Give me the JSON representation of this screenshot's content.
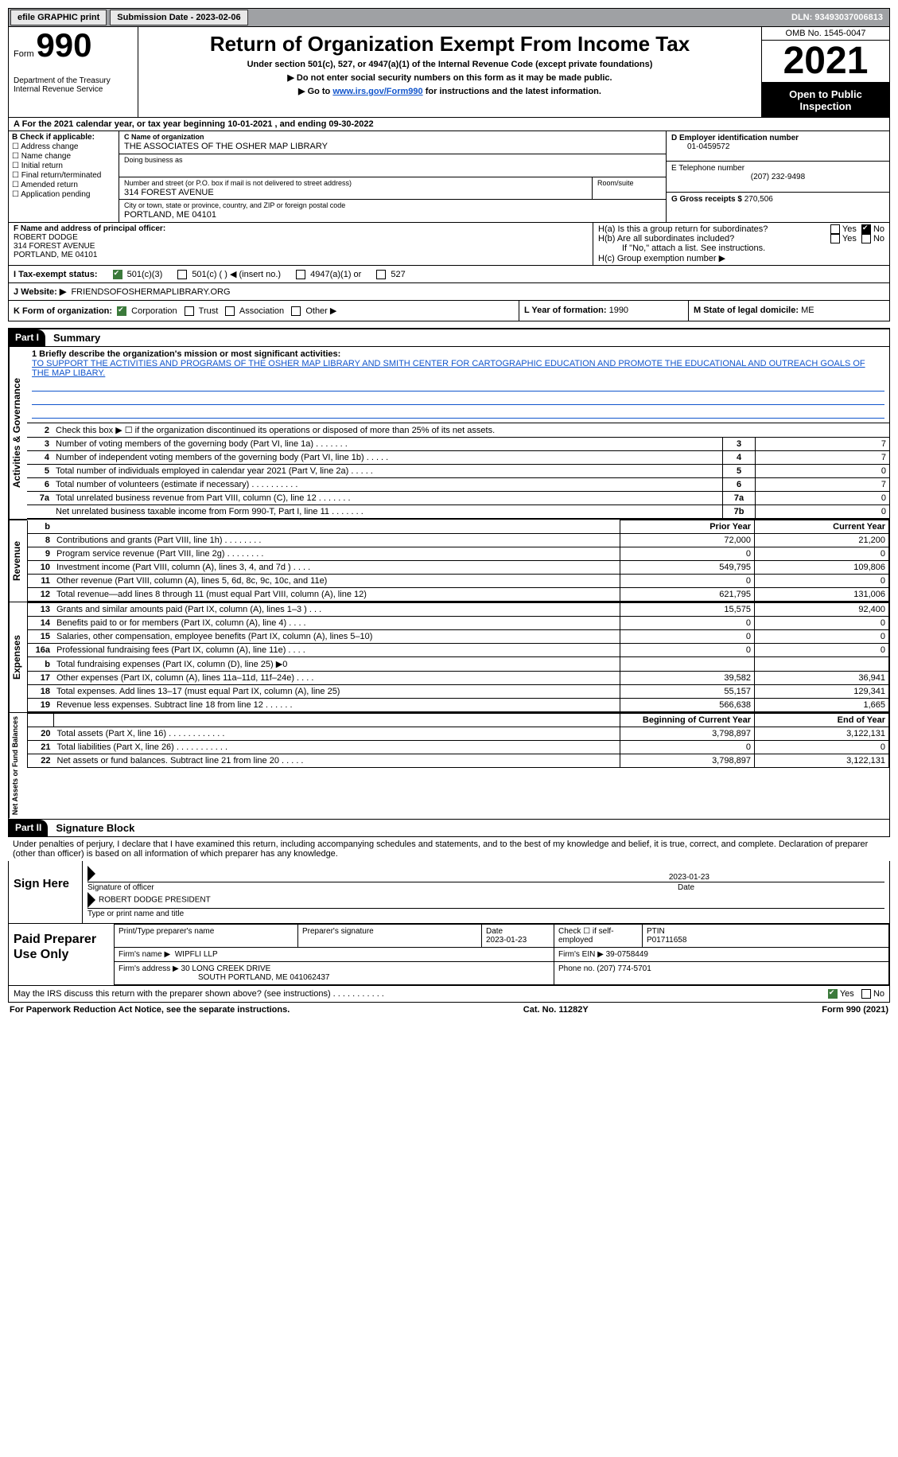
{
  "topbar": {
    "efile": "efile GRAPHIC print",
    "submission_label": "Submission Date - 2023-02-06",
    "dln": "DLN: 93493037006813"
  },
  "header": {
    "form_label": "Form",
    "form_num": "990",
    "dept": "Department of the Treasury",
    "irs": "Internal Revenue Service",
    "title": "Return of Organization Exempt From Income Tax",
    "subtitle": "Under section 501(c), 527, or 4947(a)(1) of the Internal Revenue Code (except private foundations)",
    "instruct1": "▶ Do not enter social security numbers on this form as it may be made public.",
    "instruct2_pre": "▶ Go to ",
    "instruct2_link": "www.irs.gov/Form990",
    "instruct2_post": " for instructions and the latest information.",
    "omb": "OMB No. 1545-0047",
    "year": "2021",
    "public": "Open to Public Inspection"
  },
  "periodA": "A For the 2021 calendar year, or tax year beginning 10-01-2021   , and ending 09-30-2022",
  "boxB": {
    "label": "B Check if applicable:",
    "opts": [
      "Address change",
      "Name change",
      "Initial return",
      "Final return/terminated",
      "Amended return",
      "Application pending"
    ]
  },
  "boxC": {
    "name_label": "C Name of organization",
    "name": "THE ASSOCIATES OF THE OSHER MAP LIBRARY",
    "dba_label": "Doing business as",
    "dba": "",
    "street_label": "Number and street (or P.O. box if mail is not delivered to street address)",
    "room_label": "Room/suite",
    "street": "314 FOREST AVENUE",
    "city_label": "City or town, state or province, country, and ZIP or foreign postal code",
    "city": "PORTLAND, ME  04101"
  },
  "boxD": {
    "ein_label": "D Employer identification number",
    "ein": "01-0459572",
    "phone_label": "E Telephone number",
    "phone": "(207) 232-9498",
    "gross_label": "G Gross receipts $",
    "gross": "270,506"
  },
  "boxF": {
    "label": "F  Name and address of principal officer:",
    "name": "ROBERT DODGE",
    "street": "314 FOREST AVENUE",
    "city": "PORTLAND, ME  04101"
  },
  "boxH": {
    "ha": "H(a)  Is this a group return for subordinates?",
    "hb": "H(b)  Are all subordinates included?",
    "hb_note": "If \"No,\" attach a list. See instructions.",
    "hc": "H(c)  Group exemption number ▶",
    "yes": "Yes",
    "no": "No"
  },
  "boxI": {
    "label": "I   Tax-exempt status:",
    "o1": "501(c)(3)",
    "o2": "501(c) (  ) ◀ (insert no.)",
    "o3": "4947(a)(1) or",
    "o4": "527"
  },
  "boxJ": {
    "label": "J   Website: ▶",
    "val": "FRIENDSOFOSHERMAPLIBRARY.ORG"
  },
  "boxK": {
    "label": "K Form of organization:",
    "corp": "Corporation",
    "trust": "Trust",
    "assoc": "Association",
    "other": "Other ▶"
  },
  "boxL": {
    "label": "L Year of formation:",
    "val": "1990"
  },
  "boxM": {
    "label": "M State of legal domicile:",
    "val": "ME"
  },
  "part1": {
    "tag": "Part I",
    "title": "Summary",
    "section_ag": "Activities & Governance",
    "section_rev": "Revenue",
    "section_exp": "Expenses",
    "section_net": "Net Assets or Fund Balances",
    "line1_label": "1  Briefly describe the organization's mission or most significant activities:",
    "line1_text": "TO SUPPORT THE ACTIVITIES AND PROGRAMS OF THE OSHER MAP LIBRARY AND SMITH CENTER FOR CARTOGRAPHIC EDUCATION AND PROMOTE THE EDUCATIONAL AND OUTREACH GOALS OF THE MAP LIBARY.",
    "line2": "Check this box ▶ ☐  if the organization discontinued its operations or disposed of more than 25% of its net assets.",
    "rows_ag": [
      {
        "n": "3",
        "desc": "Number of voting members of the governing body (Part VI, line 1a)   .    .    .    .    .    .    .",
        "box": "3",
        "val": "7"
      },
      {
        "n": "4",
        "desc": "Number of independent voting members of the governing body (Part VI, line 1b)  .    .    .    .    .",
        "box": "4",
        "val": "7"
      },
      {
        "n": "5",
        "desc": "Total number of individuals employed in calendar year 2021 (Part V, line 2a)  .    .    .    .    .",
        "box": "5",
        "val": "0"
      },
      {
        "n": "6",
        "desc": "Total number of volunteers (estimate if necessary)    .    .    .    .    .    .    .    .    .    .",
        "box": "6",
        "val": "7"
      },
      {
        "n": "7a",
        "desc": "Total unrelated business revenue from Part VIII, column (C), line 12   .    .    .    .    .    .    .",
        "box": "7a",
        "val": "0"
      },
      {
        "n": "",
        "desc": "Net unrelated business taxable income from Form 990-T, Part I, line 11  .    .    .    .    .    .    .",
        "box": "7b",
        "val": "0"
      }
    ],
    "col_prior": "Prior Year",
    "col_current": "Current Year",
    "rows_rev": [
      {
        "n": "8",
        "desc": "Contributions and grants (Part VIII, line 1h)   .    .    .    .    .    .    .    .",
        "p": "72,000",
        "c": "21,200"
      },
      {
        "n": "9",
        "desc": "Program service revenue (Part VIII, line 2g)   .    .    .    .    .    .    .    .",
        "p": "0",
        "c": "0"
      },
      {
        "n": "10",
        "desc": "Investment income (Part VIII, column (A), lines 3, 4, and 7d )   .    .    .    .",
        "p": "549,795",
        "c": "109,806"
      },
      {
        "n": "11",
        "desc": "Other revenue (Part VIII, column (A), lines 5, 6d, 8c, 9c, 10c, and 11e)",
        "p": "0",
        "c": "0"
      },
      {
        "n": "12",
        "desc": "Total revenue—add lines 8 through 11 (must equal Part VIII, column (A), line 12)",
        "p": "621,795",
        "c": "131,006"
      }
    ],
    "rows_exp": [
      {
        "n": "13",
        "desc": "Grants and similar amounts paid (Part IX, column (A), lines 1–3 )  .    .    .",
        "p": "15,575",
        "c": "92,400"
      },
      {
        "n": "14",
        "desc": "Benefits paid to or for members (Part IX, column (A), line 4)  .    .    .    .",
        "p": "0",
        "c": "0"
      },
      {
        "n": "15",
        "desc": "Salaries, other compensation, employee benefits (Part IX, column (A), lines 5–10)",
        "p": "0",
        "c": "0"
      },
      {
        "n": "16a",
        "desc": "Professional fundraising fees (Part IX, column (A), line 11e)  .    .    .    .",
        "p": "0",
        "c": "0"
      },
      {
        "n": "b",
        "desc": "Total fundraising expenses (Part IX, column (D), line 25) ▶0",
        "p": "",
        "c": "",
        "shaded": true
      },
      {
        "n": "17",
        "desc": "Other expenses (Part IX, column (A), lines 11a–11d, 11f–24e)  .    .    .    .",
        "p": "39,582",
        "c": "36,941"
      },
      {
        "n": "18",
        "desc": "Total expenses. Add lines 13–17 (must equal Part IX, column (A), line 25)",
        "p": "55,157",
        "c": "129,341"
      },
      {
        "n": "19",
        "desc": "Revenue less expenses. Subtract line 18 from line 12  .    .    .    .    .    .",
        "p": "566,638",
        "c": "1,665"
      }
    ],
    "col_begin": "Beginning of Current Year",
    "col_end": "End of Year",
    "rows_net": [
      {
        "n": "20",
        "desc": "Total assets (Part X, line 16)  .    .    .    .    .    .    .    .    .    .    .    .",
        "p": "3,798,897",
        "c": "3,122,131"
      },
      {
        "n": "21",
        "desc": "Total liabilities (Part X, line 26)  .    .    .    .    .    .    .    .    .    .    .",
        "p": "0",
        "c": "0"
      },
      {
        "n": "22",
        "desc": "Net assets or fund balances. Subtract line 21 from line 20  .    .    .    .    .",
        "p": "3,798,897",
        "c": "3,122,131"
      }
    ]
  },
  "part2": {
    "tag": "Part II",
    "title": "Signature Block",
    "penalty": "Under penalties of perjury, I declare that I have examined this return, including accompanying schedules and statements, and to the best of my knowledge and belief, it is true, correct, and complete. Declaration of preparer (other than officer) is based on all information of which preparer has any knowledge.",
    "sign_here": "Sign Here",
    "sig_officer": "Signature of officer",
    "sig_date": "2023-01-23",
    "date_label": "Date",
    "officer_name": "ROBERT DODGE  PRESIDENT",
    "type_label": "Type or print name and title",
    "paid": "Paid Preparer Use Only",
    "prep_name_label": "Print/Type preparer's name",
    "prep_sig_label": "Preparer's signature",
    "prep_date_label": "Date",
    "prep_date": "2023-01-23",
    "check_self": "Check ☐ if self-employed",
    "ptin_label": "PTIN",
    "ptin": "P01711658",
    "firm_name_label": "Firm's name    ▶",
    "firm_name": "WIPFLI LLP",
    "firm_ein_label": "Firm's EIN ▶",
    "firm_ein": "39-0758449",
    "firm_addr_label": "Firm's address ▶",
    "firm_addr1": "30 LONG CREEK DRIVE",
    "firm_addr2": "SOUTH PORTLAND, ME  041062437",
    "firm_phone_label": "Phone no.",
    "firm_phone": "(207) 774-5701",
    "discuss": "May the IRS discuss this return with the preparer shown above? (see instructions)   .    .    .    .    .    .    .    .    .    .    .",
    "yes": "Yes",
    "no": "No"
  },
  "footer": {
    "pra": "For Paperwork Reduction Act Notice, see the separate instructions.",
    "cat": "Cat. No. 11282Y",
    "form": "Form 990 (2021)"
  }
}
